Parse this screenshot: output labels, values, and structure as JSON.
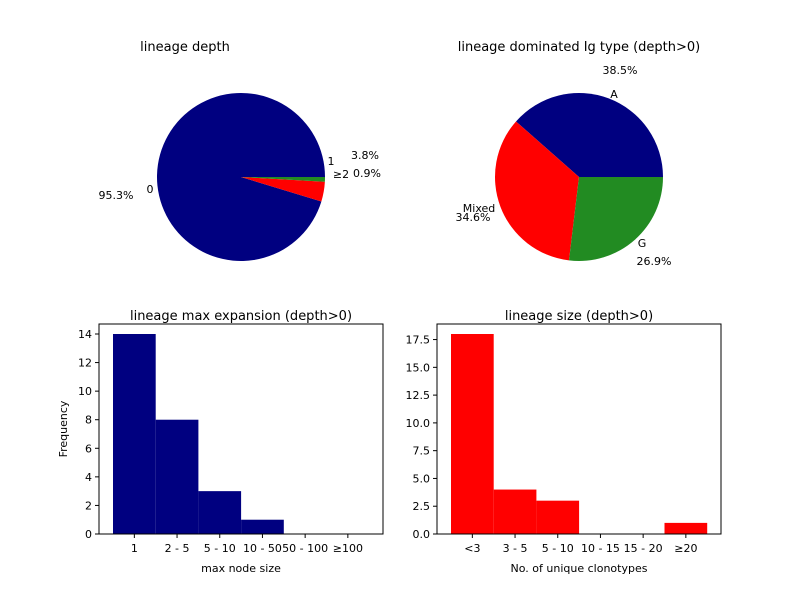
{
  "chart_data": [
    {
      "type": "pie",
      "title": "lineage depth",
      "labels": [
        "0",
        "1",
        "≥2"
      ],
      "values": [
        95.3,
        3.8,
        0.9
      ],
      "percent_labels": [
        "95.3%",
        "3.8%",
        "0.9%"
      ],
      "colors": [
        "#000080",
        "#ff0000",
        "#228b22"
      ],
      "startangle": 0
    },
    {
      "type": "pie",
      "title": "lineage dominated Ig type (depth>0)",
      "labels": [
        "A",
        "Mixed",
        "G"
      ],
      "values": [
        38.5,
        34.6,
        26.9
      ],
      "percent_labels": [
        "38.5%",
        "34.6%",
        "26.9%"
      ],
      "colors": [
        "#000080",
        "#ff0000",
        "#228b22"
      ],
      "startangle": 0
    },
    {
      "type": "bar",
      "title": "lineage max expansion (depth>0)",
      "categories": [
        "1",
        "2 - 5",
        "5 - 10",
        "10 - 50",
        "50 - 100",
        "≥100"
      ],
      "values": [
        14,
        8,
        3,
        1,
        0,
        0
      ],
      "xlabel": "max node size",
      "ylabel": "Frequency",
      "ylim": [
        0,
        14.7
      ],
      "yticks": [
        "0",
        "2",
        "4",
        "6",
        "8",
        "10",
        "12",
        "14"
      ],
      "color": "#000080"
    },
    {
      "type": "bar",
      "title": "lineage size (depth>0)",
      "categories": [
        "<3",
        "3 - 5",
        "5 - 10",
        "10 - 15",
        "15 - 20",
        "≥20"
      ],
      "values": [
        18,
        4,
        3,
        0,
        0,
        1
      ],
      "xlabel": "No. of unique clonotypes",
      "ylabel": "",
      "ylim": [
        0,
        18.9
      ],
      "yticks": [
        "0.0",
        "2.5",
        "5.0",
        "7.5",
        "10.0",
        "12.5",
        "15.0",
        "17.5"
      ],
      "color": "#ff0000"
    }
  ]
}
